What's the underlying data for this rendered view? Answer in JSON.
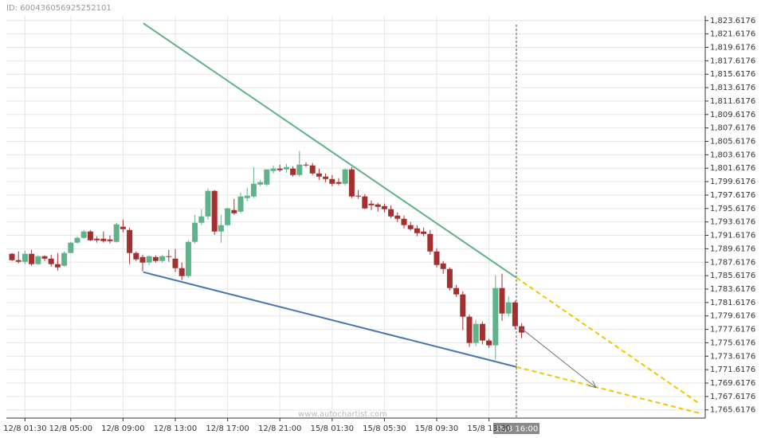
{
  "chart_data": {
    "type": "candlestick",
    "id_label": "ID: 600436056925252101",
    "watermark": "www.autochartist.com",
    "cursor_label": "15/8 16:00",
    "up_color": "#5fb38a",
    "down_color": "#a3302f",
    "grid": true,
    "ylim": [
      1764.4,
      1824.3
    ],
    "yticks": [
      {
        "value": 1765.6176,
        "label": "1,765.6176"
      },
      {
        "value": 1767.6176,
        "label": "1,767.6176"
      },
      {
        "value": 1769.6176,
        "label": "1,769.6176"
      },
      {
        "value": 1771.6176,
        "label": "1,771.6176"
      },
      {
        "value": 1773.6176,
        "label": "1,773.6176"
      },
      {
        "value": 1775.6176,
        "label": "1,775.6176"
      },
      {
        "value": 1777.6176,
        "label": "1,777.6176"
      },
      {
        "value": 1779.6176,
        "label": "1,779.6176"
      },
      {
        "value": 1781.6176,
        "label": "1,781.6176"
      },
      {
        "value": 1783.6176,
        "label": "1,783.6176"
      },
      {
        "value": 1785.6176,
        "label": "1,785.6176"
      },
      {
        "value": 1787.6176,
        "label": "1,787.6176"
      },
      {
        "value": 1789.6176,
        "label": "1,789.6176"
      },
      {
        "value": 1791.6176,
        "label": "1,791.6176"
      },
      {
        "value": 1793.6176,
        "label": "1,793.6176"
      },
      {
        "value": 1795.6176,
        "label": "1,795.6176"
      },
      {
        "value": 1797.6176,
        "label": "1,797.6176"
      },
      {
        "value": 1799.6176,
        "label": "1,799.6176"
      },
      {
        "value": 1801.6176,
        "label": "1,801.6176"
      },
      {
        "value": 1803.6176,
        "label": "1,803.6176"
      },
      {
        "value": 1805.6176,
        "label": "1,805.6176"
      },
      {
        "value": 1807.6176,
        "label": "1,807.6176"
      },
      {
        "value": 1809.6176,
        "label": "1,809.6176"
      },
      {
        "value": 1811.6176,
        "label": "1,811.6176"
      },
      {
        "value": 1813.6176,
        "label": "1,813.6176"
      },
      {
        "value": 1815.6176,
        "label": "1,815.6176"
      },
      {
        "value": 1817.6176,
        "label": "1,817.6176"
      },
      {
        "value": 1819.6176,
        "label": "1,819.6176"
      },
      {
        "value": 1821.6176,
        "label": "1,821.6176"
      },
      {
        "value": 1823.6176,
        "label": "1,823.6176"
      }
    ],
    "categories": [
      null,
      null,
      "12/8 01:30",
      null,
      null,
      null,
      null,
      null,
      null,
      "12/8 05:00",
      null,
      null,
      null,
      null,
      null,
      null,
      null,
      "12/8 09:00",
      null,
      null,
      null,
      null,
      null,
      null,
      null,
      "12/8 13:00",
      null,
      null,
      null,
      null,
      null,
      null,
      null,
      "12/8 17:00",
      null,
      null,
      null,
      null,
      null,
      null,
      null,
      "12/8 21:00",
      null,
      null,
      null,
      null,
      null,
      null,
      null,
      "15/8 01:30",
      null,
      null,
      null,
      null,
      null,
      null,
      null,
      "15/8 05:30",
      null,
      null,
      null,
      null,
      null,
      null,
      null,
      "15/8 09:30",
      null,
      null,
      null,
      null,
      null,
      null,
      null,
      "15/8 13:30",
      null,
      null,
      null,
      null,
      null
    ],
    "open": [
      1788.87,
      1787.92,
      1787.68,
      1788.87,
      1787.33,
      1788.51,
      1788.15,
      1787.33,
      1787.09,
      1788.99,
      1790.53,
      1791.24,
      1792.19,
      1791.12,
      1791.12,
      1791.0,
      1790.65,
      1792.9,
      1792.42,
      1788.99,
      1788.39,
      1787.56,
      1788.39,
      1787.8,
      1788.51,
      1788.15,
      1786.73,
      1785.55,
      1790.65,
      1793.49,
      1794.44,
      1798.24,
      1792.19,
      1793.14,
      1795.39,
      1795.15,
      1797.17,
      1797.41,
      1799.18,
      1799.18,
      1801.2,
      1801.56,
      1801.44,
      1801.56,
      1800.61,
      1802.15,
      1802.03,
      1800.84,
      1800.37,
      1800.01,
      1799.54,
      1799.3,
      1801.44,
      1797.52,
      1797.41,
      1796.34,
      1796.22,
      1795.98,
      1795.51,
      1794.56,
      1794.09,
      1793.14,
      1792.66,
      1792.19,
      1791.83,
      1789.22,
      1787.44,
      1786.61,
      1783.77,
      1782.82,
      1779.5,
      1775.59,
      1778.43,
      1775.95,
      1775.24,
      1783.77,
      1779.97,
      1781.63,
      1778.08
    ],
    "high": [
      1788.99,
      1789.22,
      1789.34,
      1789.46,
      1788.63,
      1788.63,
      1788.75,
      1788.99,
      1789.22,
      1790.65,
      1791.48,
      1792.42,
      1792.42,
      1791.48,
      1792.19,
      1791.59,
      1793.49,
      1793.97,
      1792.78,
      1789.22,
      1788.75,
      1788.63,
      1788.63,
      1788.75,
      1789.46,
      1789.58,
      1787.56,
      1790.88,
      1794.68,
      1795.51,
      1798.59,
      1798.35,
      1794.68,
      1795.74,
      1797.05,
      1798.0,
      1798.71,
      1801.79,
      1799.89,
      1801.44,
      1802.03,
      1802.15,
      1802.27,
      1801.91,
      1804.17,
      1802.51,
      1802.39,
      1801.56,
      1800.84,
      1800.61,
      1800.13,
      1801.56,
      1801.79,
      1798.35,
      1797.76,
      1796.81,
      1796.46,
      1796.34,
      1796.1,
      1795.03,
      1794.56,
      1793.61,
      1793.14,
      1792.78,
      1792.42,
      1789.7,
      1787.8,
      1786.85,
      1784.24,
      1783.29,
      1779.85,
      1779.02,
      1778.79,
      1776.19,
      1785.66,
      1785.9,
      1782.58,
      1781.87,
      1778.55
    ],
    "low": [
      1787.8,
      1787.44,
      1787.33,
      1787.09,
      1787.21,
      1787.8,
      1786.97,
      1786.38,
      1786.97,
      1788.99,
      1790.41,
      1791.12,
      1790.76,
      1790.53,
      1790.53,
      1790.41,
      1790.53,
      1792.07,
      1787.33,
      1787.8,
      1786.26,
      1787.21,
      1787.56,
      1787.56,
      1787.68,
      1786.14,
      1784.95,
      1785.31,
      1790.41,
      1793.14,
      1793.97,
      1791.71,
      1790.53,
      1793.02,
      1794.68,
      1794.91,
      1796.69,
      1797.17,
      1798.94,
      1798.94,
      1800.84,
      1801.08,
      1800.96,
      1800.37,
      1800.37,
      1801.79,
      1800.61,
      1799.89,
      1799.54,
      1798.94,
      1799.06,
      1799.06,
      1797.17,
      1797.05,
      1795.51,
      1795.39,
      1795.15,
      1795.03,
      1794.2,
      1793.61,
      1792.66,
      1792.31,
      1791.48,
      1791.48,
      1788.75,
      1786.85,
      1785.9,
      1783.41,
      1782.46,
      1777.49,
      1775.0,
      1775.12,
      1775.36,
      1774.88,
      1773.1,
      1778.9,
      1779.5,
      1777.6,
      1776.3
    ],
    "close": [
      1787.92,
      1787.68,
      1788.87,
      1787.33,
      1788.51,
      1788.15,
      1787.33,
      1786.85,
      1788.99,
      1790.53,
      1791.24,
      1792.19,
      1790.88,
      1790.88,
      1790.76,
      1790.76,
      1793.26,
      1792.54,
      1788.99,
      1788.04,
      1787.56,
      1788.51,
      1787.8,
      1788.51,
      1788.39,
      1786.73,
      1785.55,
      1790.65,
      1793.49,
      1794.44,
      1798.24,
      1792.19,
      1793.14,
      1795.63,
      1794.91,
      1797.41,
      1797.52,
      1799.3,
      1799.54,
      1801.44,
      1801.56,
      1801.32,
      1801.79,
      1800.61,
      1802.15,
      1802.03,
      1800.84,
      1800.37,
      1800.01,
      1799.3,
      1799.3,
      1801.44,
      1797.41,
      1797.41,
      1795.63,
      1796.1,
      1795.86,
      1795.51,
      1794.44,
      1794.09,
      1793.14,
      1792.54,
      1791.95,
      1791.83,
      1789.22,
      1787.21,
      1786.61,
      1783.77,
      1782.82,
      1779.5,
      1775.59,
      1778.43,
      1775.95,
      1775.24,
      1783.77,
      1779.97,
      1781.63,
      1778.08,
      1777.13
    ],
    "trend_lines": [
      {
        "color": "#5fb38a",
        "dashed": false,
        "arrow": false,
        "x": [
          20.1,
          77.2
        ],
        "y": [
          1823.21,
          1785.31
        ]
      },
      {
        "color": "#4a74b0",
        "dashed": false,
        "arrow": false,
        "x": [
          20.1,
          77.2
        ],
        "y": [
          1786.14,
          1772.02
        ]
      },
      {
        "color": "#f5c400",
        "dashed": true,
        "arrow": false,
        "x": [
          77.2,
          105.2
        ],
        "y": [
          1785.31,
          1766.57
        ]
      },
      {
        "color": "#f5c400",
        "dashed": true,
        "arrow": false,
        "x": [
          77.2,
          105.2
        ],
        "y": [
          1772.02,
          1765.14
        ]
      },
      {
        "color": "#777777",
        "dashed": false,
        "arrow": true,
        "x": [
          78,
          89.4
        ],
        "y": [
          1777.72,
          1768.94
        ]
      }
    ]
  }
}
